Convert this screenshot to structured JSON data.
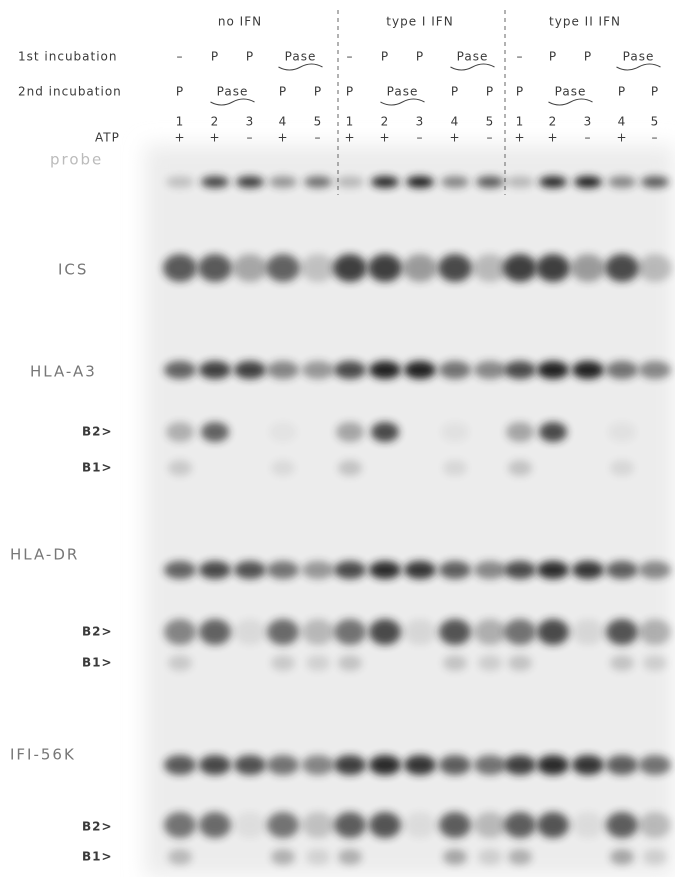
{
  "column_groups": [
    "no IFN",
    "type I IFN",
    "type II IFN"
  ],
  "rows": [
    {
      "label": "1st incubation",
      "cells": [
        "–",
        "P",
        "P",
        "Pase"
      ]
    },
    {
      "label": "2nd incubation",
      "cells": [
        "P",
        "Pase",
        "P",
        "P"
      ]
    }
  ],
  "lane_numbers": [
    "1",
    "2",
    "3",
    "4",
    "5"
  ],
  "atp": {
    "label": "ATP",
    "values": [
      "+",
      "+",
      "–",
      "+",
      "–"
    ]
  },
  "panels": [
    {
      "label": "probe"
    },
    {
      "label": "ICS"
    },
    {
      "label": "HLA-A3",
      "markers": [
        "B2>",
        "B1>"
      ]
    },
    {
      "label": "HLA-DR",
      "markers": [
        "B2>",
        "B1>"
      ]
    },
    {
      "label": "IFI-56K",
      "markers": [
        "B2>",
        "B1>"
      ]
    }
  ]
}
